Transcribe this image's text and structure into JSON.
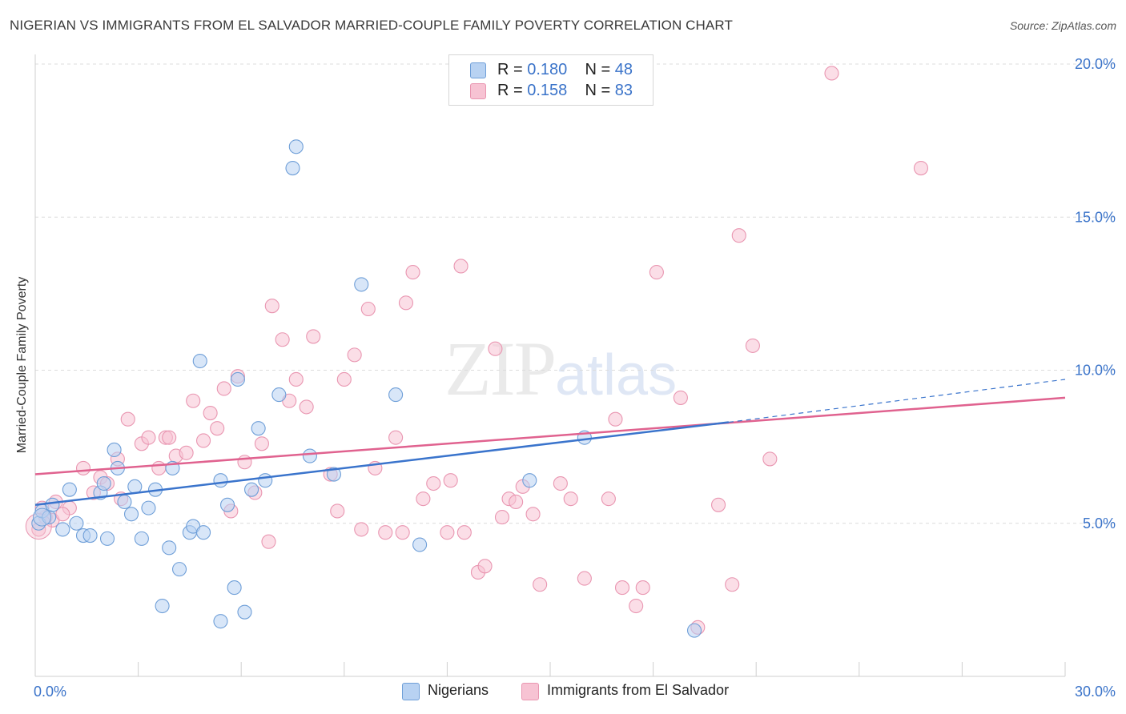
{
  "title": "NIGERIAN VS IMMIGRANTS FROM EL SALVADOR MARRIED-COUPLE FAMILY POVERTY CORRELATION CHART",
  "source": "Source: ZipAtlas.com",
  "watermark": {
    "zip": "ZIP",
    "atlas": "atlas"
  },
  "legend": {
    "rows": [
      {
        "r_label": "R = ",
        "r_value": "0.180",
        "n_label": "N = ",
        "n_value": "48"
      },
      {
        "r_label": "R = ",
        "r_value": "0.158",
        "n_label": "N = ",
        "n_value": "83"
      }
    ]
  },
  "bottom_legend": {
    "series_a": "Nigerians",
    "series_b": "Immigrants from El Salvador"
  },
  "colors": {
    "blue_fill": "#b8d2f2",
    "blue_stroke": "#6f9fd8",
    "blue_line": "#3a74cc",
    "pink_fill": "#f7c3d3",
    "pink_stroke": "#e996b1",
    "pink_line": "#e0628f",
    "grid": "#dcdcdc",
    "tick_label": "#3a73c9"
  },
  "chart_data": {
    "type": "scatter",
    "title": "NIGERIAN VS IMMIGRANTS FROM EL SALVADOR MARRIED-COUPLE FAMILY POVERTY CORRELATION CHART",
    "xlabel": "",
    "ylabel": "Married-Couple Family Poverty",
    "xlim": [
      0,
      30
    ],
    "ylim": [
      0,
      20
    ],
    "x_tick_labels": [
      "0.0%",
      "30.0%"
    ],
    "y_ticks": [
      5,
      10,
      15,
      20
    ],
    "y_tick_labels": [
      "5.0%",
      "10.0%",
      "15.0%",
      "20.0%"
    ],
    "grid": true,
    "legend_placement": "top-center",
    "series": [
      {
        "name": "Nigerians",
        "color": "#6f9fd8",
        "R": 0.18,
        "N": 48,
        "trend": {
          "x": [
            0,
            20.2
          ],
          "y": [
            5.6,
            8.3
          ],
          "dashed_to": [
            30,
            9.7
          ]
        },
        "points": [
          [
            0.1,
            5.0
          ],
          [
            0.2,
            5.4
          ],
          [
            0.4,
            5.2
          ],
          [
            0.5,
            5.6
          ],
          [
            0.8,
            4.8
          ],
          [
            1.0,
            6.1
          ],
          [
            1.2,
            5.0
          ],
          [
            1.4,
            4.6
          ],
          [
            1.6,
            4.6
          ],
          [
            1.9,
            6.0
          ],
          [
            2.0,
            6.3
          ],
          [
            2.1,
            4.5
          ],
          [
            2.3,
            7.4
          ],
          [
            2.4,
            6.8
          ],
          [
            2.6,
            5.7
          ],
          [
            2.8,
            5.3
          ],
          [
            2.9,
            6.2
          ],
          [
            3.1,
            4.5
          ],
          [
            3.3,
            5.5
          ],
          [
            3.5,
            6.1
          ],
          [
            3.7,
            2.3
          ],
          [
            3.9,
            4.2
          ],
          [
            4.0,
            6.8
          ],
          [
            4.2,
            3.5
          ],
          [
            4.5,
            4.7
          ],
          [
            4.6,
            4.9
          ],
          [
            4.8,
            10.3
          ],
          [
            4.9,
            4.7
          ],
          [
            5.4,
            6.4
          ],
          [
            5.4,
            1.8
          ],
          [
            5.6,
            5.6
          ],
          [
            5.8,
            2.9
          ],
          [
            5.9,
            9.7
          ],
          [
            6.1,
            2.1
          ],
          [
            6.3,
            6.1
          ],
          [
            6.5,
            8.1
          ],
          [
            6.7,
            6.4
          ],
          [
            7.1,
            9.2
          ],
          [
            7.5,
            16.6
          ],
          [
            7.6,
            17.3
          ],
          [
            8.0,
            7.2
          ],
          [
            8.7,
            6.6
          ],
          [
            9.5,
            12.8
          ],
          [
            10.5,
            9.2
          ],
          [
            11.2,
            4.3
          ],
          [
            14.4,
            6.4
          ],
          [
            16.0,
            7.8
          ],
          [
            19.2,
            1.5
          ]
        ]
      },
      {
        "name": "Immigrants from El Salvador",
        "color": "#e996b1",
        "R": 0.158,
        "N": 83,
        "trend": {
          "x": [
            0,
            30
          ],
          "y": [
            6.6,
            9.1
          ]
        },
        "points": [
          [
            0.1,
            4.8
          ],
          [
            0.3,
            5.2
          ],
          [
            0.6,
            5.7
          ],
          [
            1.0,
            5.5
          ],
          [
            1.4,
            6.8
          ],
          [
            1.7,
            6.0
          ],
          [
            1.9,
            6.5
          ],
          [
            2.1,
            6.3
          ],
          [
            2.4,
            7.1
          ],
          [
            2.5,
            5.8
          ],
          [
            2.7,
            8.4
          ],
          [
            3.1,
            7.6
          ],
          [
            3.3,
            7.8
          ],
          [
            3.6,
            6.8
          ],
          [
            3.8,
            7.8
          ],
          [
            3.9,
            7.8
          ],
          [
            4.1,
            7.2
          ],
          [
            4.4,
            7.3
          ],
          [
            4.6,
            9.0
          ],
          [
            4.9,
            7.7
          ],
          [
            5.1,
            8.6
          ],
          [
            5.3,
            8.1
          ],
          [
            5.5,
            9.4
          ],
          [
            5.7,
            5.4
          ],
          [
            5.9,
            9.8
          ],
          [
            6.1,
            7.0
          ],
          [
            6.4,
            6.0
          ],
          [
            6.6,
            7.6
          ],
          [
            6.8,
            4.4
          ],
          [
            6.9,
            12.1
          ],
          [
            7.2,
            11.0
          ],
          [
            7.4,
            9.0
          ],
          [
            7.6,
            9.7
          ],
          [
            7.9,
            8.8
          ],
          [
            8.1,
            11.1
          ],
          [
            8.6,
            6.6
          ],
          [
            8.8,
            5.4
          ],
          [
            9.0,
            9.7
          ],
          [
            9.3,
            10.5
          ],
          [
            9.5,
            4.8
          ],
          [
            9.7,
            12.0
          ],
          [
            9.9,
            6.8
          ],
          [
            10.2,
            4.7
          ],
          [
            10.5,
            7.8
          ],
          [
            10.7,
            4.7
          ],
          [
            10.8,
            12.2
          ],
          [
            11.0,
            13.2
          ],
          [
            11.3,
            5.8
          ],
          [
            11.6,
            6.3
          ],
          [
            12.0,
            4.7
          ],
          [
            12.1,
            6.4
          ],
          [
            12.4,
            13.4
          ],
          [
            12.5,
            4.7
          ],
          [
            12.9,
            3.4
          ],
          [
            13.1,
            3.6
          ],
          [
            13.4,
            10.7
          ],
          [
            13.6,
            5.2
          ],
          [
            13.8,
            5.8
          ],
          [
            14.0,
            5.7
          ],
          [
            14.2,
            6.2
          ],
          [
            14.5,
            5.3
          ],
          [
            14.7,
            3.0
          ],
          [
            15.3,
            6.3
          ],
          [
            15.6,
            5.8
          ],
          [
            16.0,
            3.2
          ],
          [
            16.7,
            5.8
          ],
          [
            16.9,
            8.4
          ],
          [
            17.1,
            2.9
          ],
          [
            17.5,
            2.3
          ],
          [
            17.7,
            2.9
          ],
          [
            18.1,
            13.2
          ],
          [
            18.8,
            9.1
          ],
          [
            19.3,
            1.6
          ],
          [
            19.9,
            5.6
          ],
          [
            20.3,
            3.0
          ],
          [
            20.5,
            14.4
          ],
          [
            20.9,
            10.8
          ],
          [
            21.4,
            7.1
          ],
          [
            23.2,
            19.7
          ],
          [
            25.8,
            16.6
          ],
          [
            0.2,
            5.5
          ],
          [
            0.5,
            5.1
          ],
          [
            0.8,
            5.3
          ]
        ]
      }
    ]
  }
}
